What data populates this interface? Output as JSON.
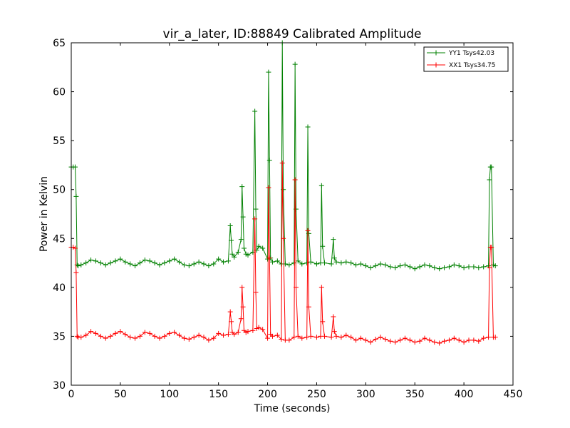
{
  "chart_data": {
    "type": "line",
    "title": "vir_a_later, ID:88849 Calibrated Amplitude",
    "xlabel": "Time (seconds)",
    "ylabel": "Power in Kelvin",
    "xlim": [
      0,
      450
    ],
    "ylim": [
      30,
      65
    ],
    "xticks": [
      "0",
      "50",
      "100",
      "150",
      "200",
      "250",
      "300",
      "350",
      "400",
      "450"
    ],
    "yticks": [
      "30",
      "35",
      "40",
      "45",
      "50",
      "55",
      "60",
      "65"
    ],
    "grid": false,
    "legend_position": "top-right",
    "marker": "+",
    "series": [
      {
        "name": "YY1 Tsys42.03",
        "color": "#008000",
        "x": [
          0,
          2,
          4,
          5,
          6,
          7,
          10,
          15,
          20,
          25,
          30,
          35,
          40,
          45,
          50,
          55,
          60,
          65,
          70,
          75,
          80,
          85,
          90,
          95,
          100,
          105,
          110,
          115,
          120,
          125,
          130,
          135,
          140,
          145,
          150,
          155,
          160,
          162,
          163,
          164,
          166,
          170,
          173,
          174,
          175,
          176,
          178,
          180,
          185,
          187,
          188,
          189,
          191,
          195,
          200,
          201,
          202,
          203,
          205,
          210,
          214,
          215,
          216,
          218,
          222,
          227,
          228,
          229,
          231,
          235,
          240,
          241,
          242,
          244,
          250,
          254,
          255,
          256,
          258,
          265,
          267,
          268,
          270,
          275,
          280,
          285,
          290,
          295,
          300,
          305,
          310,
          315,
          320,
          325,
          330,
          335,
          340,
          345,
          350,
          355,
          360,
          365,
          370,
          375,
          380,
          385,
          390,
          395,
          400,
          405,
          410,
          415,
          420,
          425,
          426,
          427,
          428,
          430,
          432
        ],
        "values": [
          52.3,
          52.3,
          52.3,
          49.3,
          42.3,
          42.2,
          42.3,
          42.5,
          42.8,
          42.7,
          42.5,
          42.3,
          42.5,
          42.7,
          42.9,
          42.6,
          42.4,
          42.2,
          42.5,
          42.8,
          42.7,
          42.5,
          42.3,
          42.5,
          42.7,
          42.9,
          42.6,
          42.3,
          42.2,
          42.4,
          42.6,
          42.4,
          42.2,
          42.4,
          42.9,
          42.6,
          42.7,
          46.3,
          44.8,
          43.4,
          43.1,
          43.6,
          44.9,
          50.3,
          47.2,
          44.0,
          43.4,
          43.3,
          43.6,
          58.0,
          48.0,
          43.8,
          44.2,
          44.0,
          42.9,
          62.0,
          53.0,
          43.0,
          42.6,
          42.7,
          42.4,
          65.0,
          50.0,
          42.4,
          42.3,
          42.5,
          62.8,
          48.0,
          42.7,
          42.4,
          42.5,
          56.4,
          45.5,
          42.6,
          42.4,
          42.5,
          50.4,
          44.2,
          42.5,
          42.4,
          44.9,
          43.0,
          42.6,
          42.5,
          42.6,
          42.5,
          42.3,
          42.4,
          42.2,
          42.0,
          42.2,
          42.4,
          42.3,
          42.1,
          42.0,
          42.2,
          42.3,
          42.1,
          41.9,
          42.1,
          42.3,
          42.2,
          42.0,
          41.9,
          42.0,
          42.1,
          42.3,
          42.2,
          42.0,
          42.1,
          42.1,
          42.0,
          42.1,
          42.2,
          51.0,
          52.3,
          52.3,
          42.3,
          42.2
        ]
      },
      {
        "name": "XX1 Tsys34.75",
        "color": "#ff0000",
        "x": [
          0,
          2,
          4,
          5,
          6,
          7,
          10,
          15,
          20,
          25,
          30,
          35,
          40,
          45,
          50,
          55,
          60,
          65,
          70,
          75,
          80,
          85,
          90,
          95,
          100,
          105,
          110,
          115,
          120,
          125,
          130,
          135,
          140,
          145,
          150,
          155,
          160,
          162,
          163,
          164,
          166,
          170,
          173,
          174,
          175,
          176,
          178,
          180,
          185,
          187,
          188,
          189,
          191,
          195,
          200,
          201,
          202,
          203,
          205,
          210,
          214,
          215,
          216,
          218,
          222,
          227,
          228,
          229,
          231,
          235,
          240,
          241,
          242,
          244,
          250,
          254,
          255,
          256,
          258,
          265,
          267,
          268,
          270,
          275,
          280,
          285,
          290,
          295,
          300,
          305,
          310,
          315,
          320,
          325,
          330,
          335,
          340,
          345,
          350,
          355,
          360,
          365,
          370,
          375,
          380,
          385,
          390,
          395,
          400,
          405,
          410,
          415,
          420,
          425,
          426,
          427,
          428,
          430,
          432
        ],
        "values": [
          44.1,
          44.1,
          44.0,
          41.5,
          35.0,
          34.9,
          34.9,
          35.1,
          35.5,
          35.3,
          35.0,
          34.8,
          35.0,
          35.3,
          35.5,
          35.2,
          34.9,
          34.8,
          35.0,
          35.4,
          35.3,
          35.0,
          34.8,
          35.0,
          35.3,
          35.4,
          35.1,
          34.8,
          34.7,
          34.9,
          35.1,
          34.9,
          34.6,
          34.8,
          35.3,
          35.1,
          35.2,
          37.5,
          36.5,
          35.4,
          35.2,
          35.4,
          36.8,
          40.0,
          38.0,
          35.6,
          35.4,
          35.5,
          35.6,
          47.0,
          39.5,
          35.8,
          35.9,
          35.7,
          34.8,
          50.2,
          43.0,
          35.2,
          35.0,
          35.1,
          34.7,
          52.7,
          45.0,
          34.6,
          34.6,
          34.9,
          51.0,
          40.0,
          35.0,
          34.8,
          34.9,
          45.8,
          38.0,
          35.0,
          34.9,
          35.0,
          40.0,
          36.5,
          35.0,
          34.9,
          37.0,
          35.5,
          35.0,
          34.9,
          35.1,
          34.9,
          34.6,
          34.8,
          34.6,
          34.4,
          34.7,
          34.9,
          34.7,
          34.5,
          34.4,
          34.6,
          34.8,
          34.6,
          34.4,
          34.5,
          34.8,
          34.6,
          34.4,
          34.3,
          34.5,
          34.6,
          34.8,
          34.6,
          34.4,
          34.6,
          34.6,
          34.5,
          34.8,
          34.9,
          42.0,
          44.1,
          44.1,
          34.9,
          34.9
        ]
      }
    ]
  }
}
